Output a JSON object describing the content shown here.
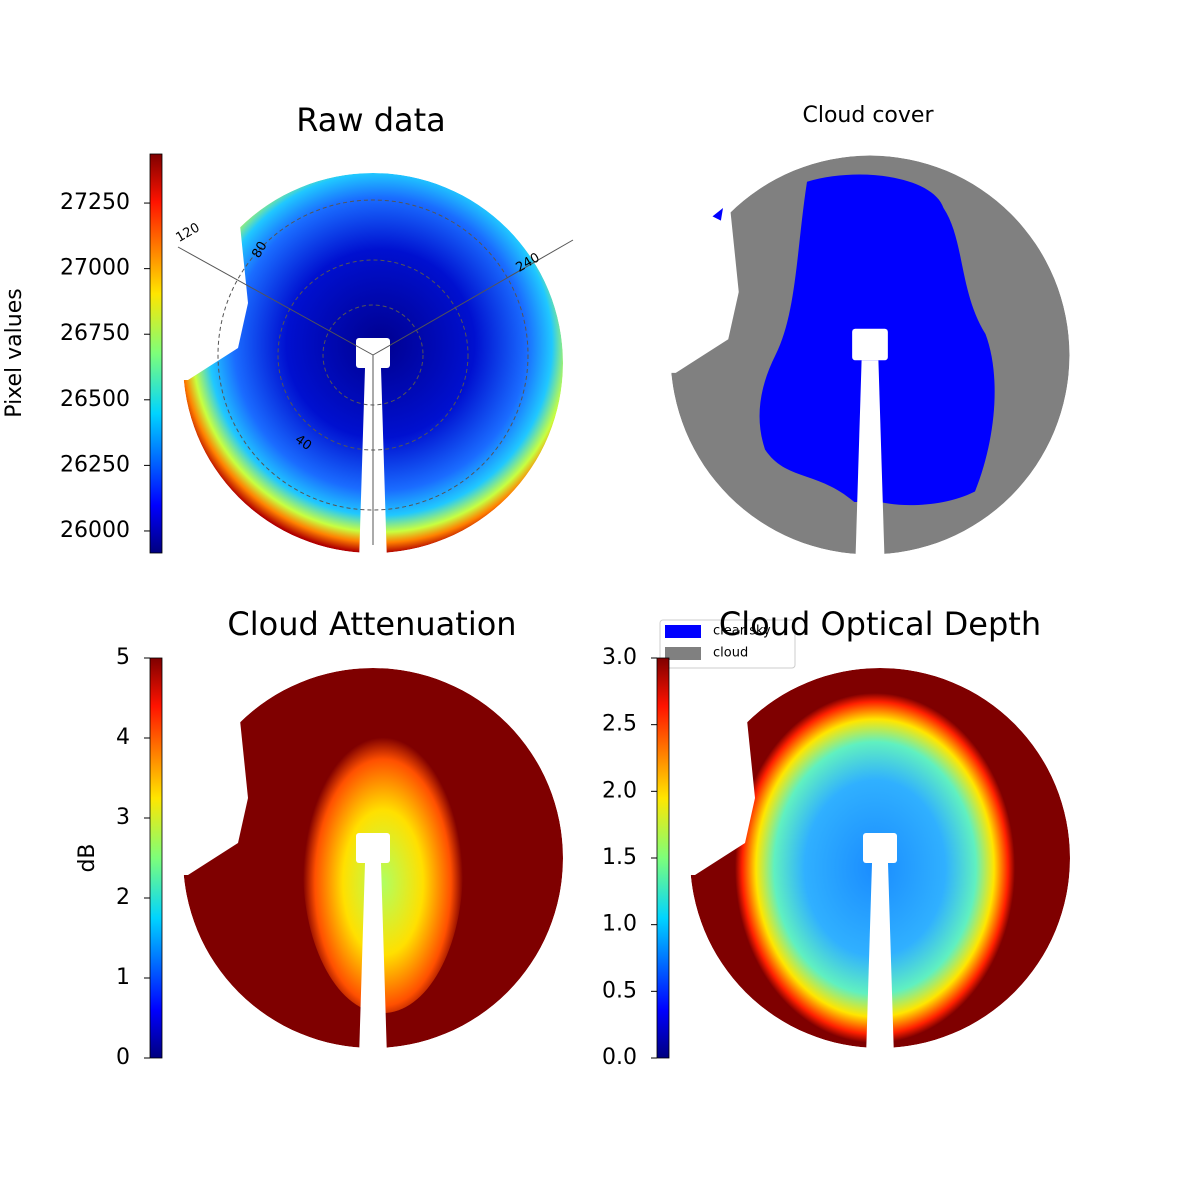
{
  "chart_data": [
    {
      "type": "image",
      "title": "Raw data",
      "colormap": "jet",
      "colorbar_label": "Pixel values",
      "clim": [
        25916,
        27437
      ],
      "cticks": [
        26000,
        26250,
        26500,
        26750,
        27000,
        27250
      ],
      "annotations": [
        "120",
        "80",
        "40",
        "240"
      ]
    },
    {
      "type": "image",
      "title": "Cloud cover",
      "series": [
        {
          "name": "clear sky",
          "color": "#0000ff"
        },
        {
          "name": "cloud",
          "color": "#808080"
        }
      ]
    },
    {
      "type": "image",
      "title": "Cloud Attenuation",
      "colormap": "jet",
      "colorbar_label": "dB",
      "clim": [
        0,
        5
      ],
      "cticks": [
        0,
        1,
        2,
        3,
        4,
        5
      ]
    },
    {
      "type": "image",
      "title": "Cloud Optical Depth",
      "colormap": "jet",
      "clim": [
        0,
        3
      ],
      "cticks": [
        {
          "value": 0,
          "label": "0.0"
        },
        0.5,
        {
          "value": 1,
          "label": "1.0"
        },
        1.5,
        {
          "value": 2,
          "label": "2.0"
        },
        2.5,
        {
          "value": 3,
          "label": "3.0"
        }
      ]
    }
  ]
}
